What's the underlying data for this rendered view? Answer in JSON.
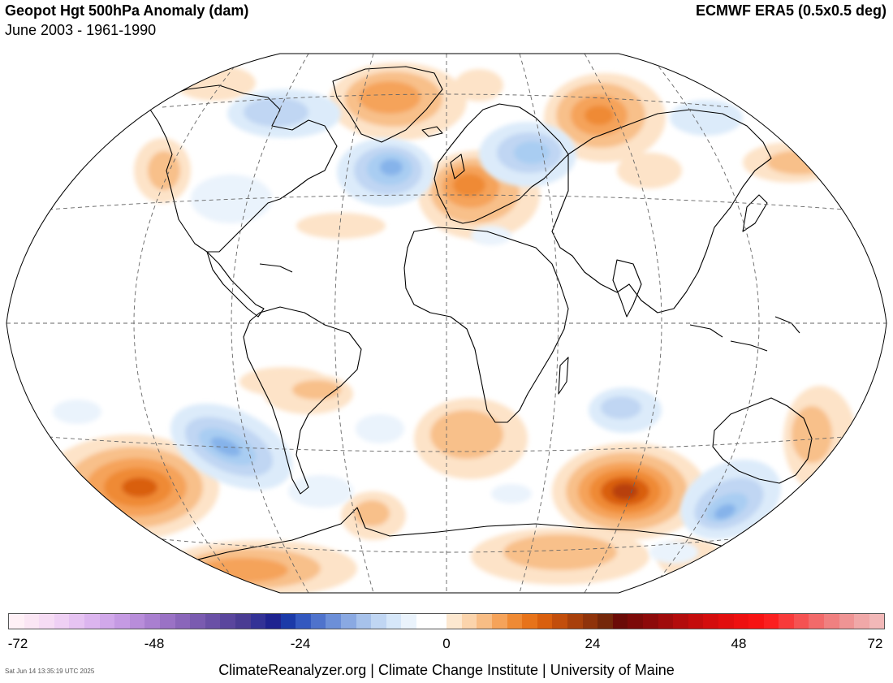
{
  "header": {
    "title": "Geopot Hgt 500hPa Anomaly (dam)",
    "subtitle": "June 2003 - 1961-1990",
    "source": "ECMWF ERA5 (0.5x0.5 deg)"
  },
  "map": {
    "projection": "Robinson",
    "variable": "500hPa geopotential height anomaly",
    "units": "dam",
    "features": [
      {
        "name": "Western Europe ridge",
        "sign": "positive"
      },
      {
        "name": "Greenland ridge",
        "sign": "positive"
      },
      {
        "name": "North Atlantic trough",
        "sign": "negative"
      },
      {
        "name": "Eastern Europe / Russia trough",
        "sign": "negative"
      },
      {
        "name": "Siberia ridge",
        "sign": "positive"
      },
      {
        "name": "Southern Indian Ocean ridge",
        "sign": "positive"
      },
      {
        "name": "South Pacific ridge",
        "sign": "positive"
      },
      {
        "name": "Southeast Pacific trough",
        "sign": "negative"
      },
      {
        "name": "South of Australia trough",
        "sign": "negative"
      },
      {
        "name": "Antarctic coast ridge",
        "sign": "positive"
      }
    ],
    "colors": {
      "positive_light": "#fde3c8",
      "positive_mid": "#f5a35a",
      "positive_strong": "#e07012",
      "positive_max": "#b8400a",
      "negative_light": "#dcebfa",
      "negative_mid": "#a9cdf2",
      "negative_strong": "#86b3ea",
      "land_outline": "#000000",
      "graticule": "#666666"
    }
  },
  "colorbar": {
    "colors": [
      "#fff0f6",
      "#fbe6f4",
      "#f6dcf4",
      "#efd0f4",
      "#e6c3f2",
      "#dcb5ef",
      "#d1a8ea",
      "#c59ae3",
      "#b88dda",
      "#a97fd0",
      "#9a72c5",
      "#8a66ba",
      "#7a5bb0",
      "#6a50a6",
      "#5a469d",
      "#4a3c93",
      "#333296",
      "#1f2390",
      "#1b3aa8",
      "#3358bf",
      "#4f73cc",
      "#6c8fd8",
      "#8aa9e2",
      "#a7c2eb",
      "#c0d6f3",
      "#d6e7f9",
      "#eaf3fc",
      "#ffffff",
      "#ffffff",
      "#fde8d0",
      "#fbd4ac",
      "#f8bd85",
      "#f5a35a",
      "#ef8a34",
      "#e7731a",
      "#d95f0e",
      "#c24e0c",
      "#a8400b",
      "#8f330b",
      "#75270a",
      "#6b0b07",
      "#7c0a08",
      "#8d0a0a",
      "#a00b0b",
      "#b30c0c",
      "#c40c0c",
      "#d40d0d",
      "#e20e0e",
      "#ee1010",
      "#f71313",
      "#fb2020",
      "#f83a3a",
      "#f55252",
      "#f26a6a",
      "#f08080",
      "#ef9494",
      "#f0a8a8",
      "#f2b8b8"
    ],
    "tick_labels": [
      "-72",
      "-48",
      "-24",
      "0",
      "24",
      "48",
      "72"
    ],
    "tick_values": [
      -72,
      -48,
      -24,
      0,
      24,
      48,
      72
    ],
    "min": -72,
    "max": 72
  },
  "footer": {
    "credit": "ClimateReanalyzer.org | Climate Change Institute | University of Maine",
    "timestamp": "Sat Jun 14 13:35:19 UTC 2025"
  }
}
